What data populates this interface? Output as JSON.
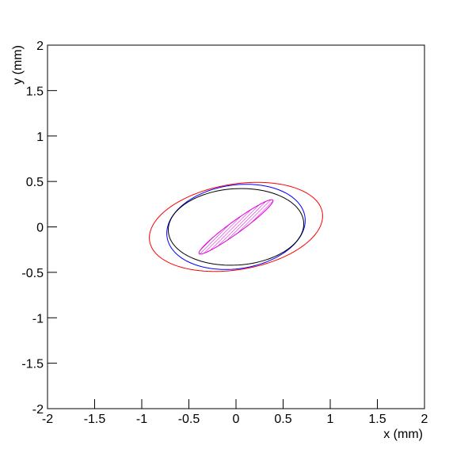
{
  "chart_data": {
    "type": "ellipse",
    "xlabel": "x (mm)",
    "ylabel": "y (mm)",
    "xlim": [
      -2,
      2
    ],
    "ylim": [
      -2,
      2
    ],
    "xticks": [
      -2,
      -1.5,
      -1,
      -0.5,
      0,
      0.5,
      1,
      1.5,
      2
    ],
    "yticks": [
      -2,
      -1.5,
      -1,
      -0.5,
      0,
      0.5,
      1,
      1.5,
      2
    ],
    "ellipses": [
      {
        "color": "#ff0000",
        "cx": 0,
        "cy": 0,
        "a": 0.93,
        "b": 0.47,
        "angle": 10,
        "filled": false
      },
      {
        "color": "#0000ff",
        "cx": 0,
        "cy": 0,
        "a": 0.74,
        "b": 0.46,
        "angle": 9,
        "filled": false
      },
      {
        "color": "#000000",
        "cx": 0,
        "cy": 0,
        "a": 0.72,
        "b": 0.42,
        "angle": 4,
        "filled": false
      },
      {
        "color": "#dd00dd",
        "cx": 0,
        "cy": 0,
        "a": 0.49,
        "b": 0.065,
        "angle": 37,
        "filled": true
      }
    ]
  }
}
